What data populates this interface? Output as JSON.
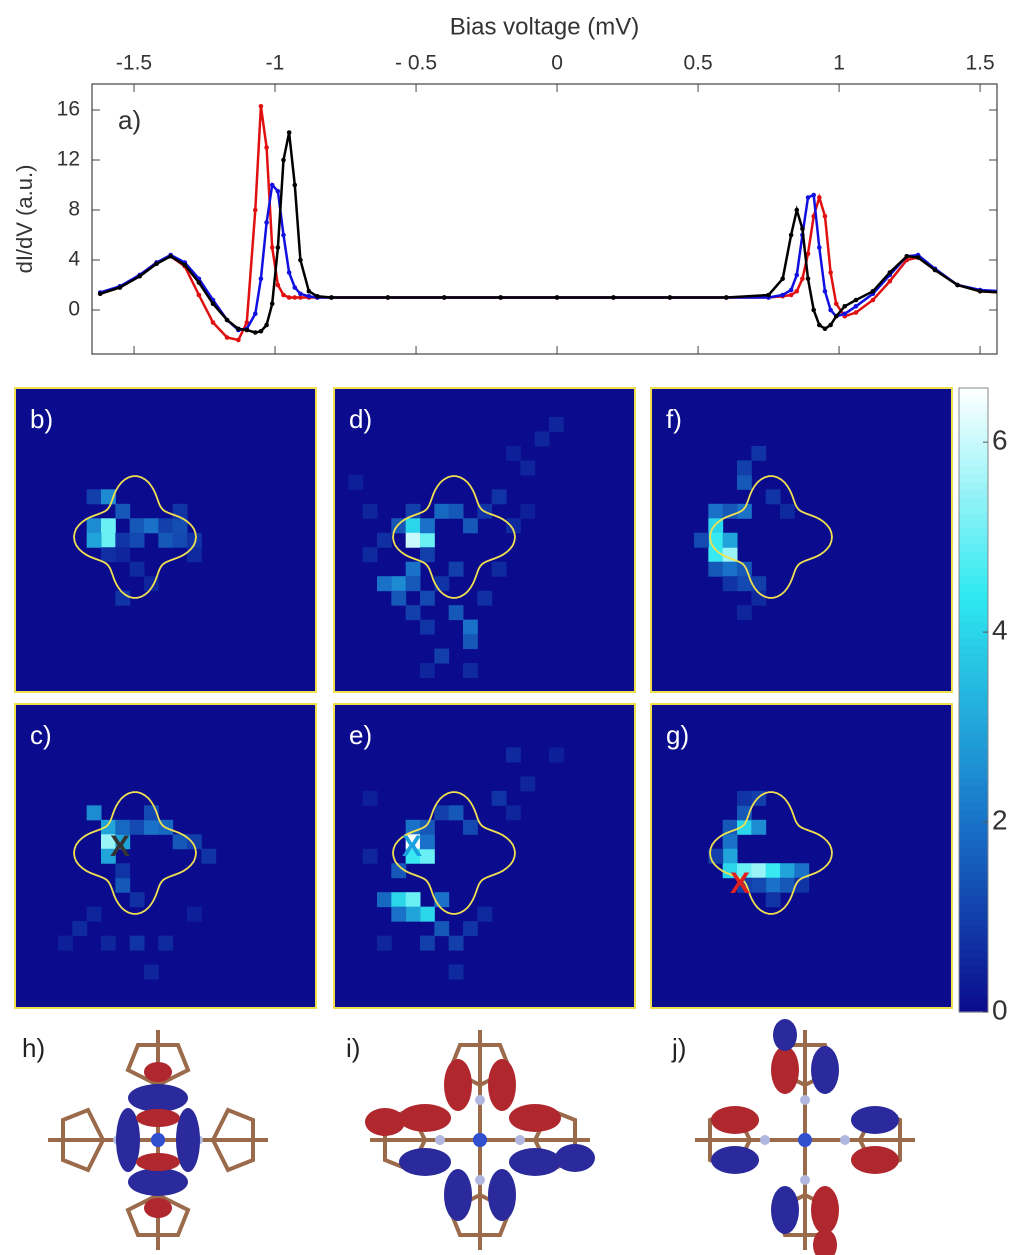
{
  "chart_data": [
    {
      "type": "line",
      "xlabel": "Bias voltage (mV)",
      "ylabel": "dI/dV (a.u.)",
      "panel_label": "a)",
      "xlim": [
        -1.649,
        1.56
      ],
      "ylim": [
        -3.52,
        18.08
      ],
      "xticks": [
        -1.5,
        -1,
        {
          "value": -0.5,
          "label": "- 0.5"
        },
        0,
        0.5,
        1,
        1.5
      ],
      "yticks": [
        0,
        4,
        8,
        12,
        16
      ],
      "x": [
        -1.62,
        -1.55,
        -1.48,
        -1.42,
        -1.37,
        -1.32,
        -1.27,
        -1.22,
        -1.17,
        -1.13,
        -1.1,
        -1.07,
        -1.05,
        -1.03,
        -1.01,
        -0.99,
        -0.97,
        -0.95,
        -0.93,
        -0.91,
        -0.88,
        -0.85,
        -0.8,
        -0.6,
        -0.4,
        -0.2,
        0,
        0.2,
        0.4,
        0.6,
        0.75,
        0.8,
        0.83,
        0.85,
        0.87,
        0.89,
        0.91,
        0.93,
        0.95,
        0.97,
        0.99,
        1.02,
        1.06,
        1.12,
        1.18,
        1.24,
        1.28,
        1.34,
        1.42,
        1.5,
        1.58
      ],
      "series": [
        {
          "color": "#e01010",
          "values": [
            1.3,
            1.8,
            2.8,
            3.8,
            4.3,
            3.5,
            1.2,
            -1.0,
            -2.2,
            -2.4,
            -1.0,
            8,
            16.3,
            13,
            5,
            2.0,
            1.2,
            1.0,
            1,
            1,
            1,
            1,
            1,
            1,
            1,
            1,
            1,
            1,
            1,
            1,
            1,
            1.1,
            1.2,
            1.5,
            2.5,
            4.5,
            7.5,
            9.0,
            7.5,
            3,
            0.5,
            -0.5,
            -0.2,
            0.8,
            2.3,
            4.0,
            4.2,
            3.2,
            2.0,
            1.5,
            1.4
          ]
        },
        {
          "color": "#1010e0",
          "values": [
            1.4,
            1.9,
            2.8,
            3.8,
            4.4,
            3.8,
            2.5,
            0.8,
            -0.8,
            -1.6,
            -1.5,
            -0.3,
            2.5,
            7,
            10,
            9.5,
            6,
            3,
            1.8,
            1.3,
            1.1,
            1.0,
            1,
            1,
            1,
            1,
            1,
            1,
            1,
            1,
            1,
            1.2,
            1.6,
            2.8,
            6,
            9,
            9.2,
            5,
            1.5,
            0,
            -0.5,
            -0.3,
            0.3,
            1.3,
            2.8,
            4.3,
            4.4,
            3.3,
            2.0,
            1.6,
            1.5
          ]
        },
        {
          "color": "#000000",
          "values": [
            1.3,
            1.8,
            2.7,
            3.7,
            4.3,
            3.6,
            2.2,
            0.5,
            -0.8,
            -1.5,
            -1.6,
            -1.8,
            -1.7,
            -1.2,
            0.5,
            5,
            12,
            14.2,
            10,
            4,
            1.5,
            1.1,
            1,
            1,
            1,
            1,
            1,
            1,
            1,
            1,
            1.2,
            2.5,
            6,
            8,
            6.5,
            2.5,
            0,
            -1.2,
            -1.5,
            -1.2,
            -0.5,
            0.3,
            0.8,
            1.5,
            3,
            4.3,
            4.2,
            3.2,
            2.0,
            1.5,
            1.4
          ]
        }
      ]
    },
    {
      "type": "heatmap",
      "clim": [
        0,
        6.57
      ],
      "cticks": [
        0,
        2,
        4,
        6
      ],
      "colormap": [
        "#0b0b8e",
        "#1a7ccc",
        "#2ee8f0",
        "#ffffff"
      ],
      "border_color": "#f0e050",
      "panels": [
        {
          "label": "b)",
          "cells": [
            [
              5,
              9,
              2.5
            ],
            [
              6,
              9,
              5
            ],
            [
              6,
              10,
              5
            ],
            [
              5,
              10,
              3
            ],
            [
              7,
              8,
              1.5
            ],
            [
              5,
              7,
              1
            ],
            [
              6,
              7,
              2.5
            ],
            [
              8,
              9,
              1.5
            ],
            [
              9,
              9,
              2
            ],
            [
              10,
              9,
              1
            ],
            [
              10,
              10,
              1.5
            ],
            [
              11,
              10,
              1.2
            ],
            [
              12,
              10,
              0.8
            ],
            [
              11,
              9,
              1.3
            ],
            [
              7,
              10,
              0.8
            ],
            [
              8,
              10,
              1.2
            ],
            [
              11,
              8,
              0.8
            ],
            [
              7,
              11,
              0.5
            ],
            [
              8,
              12,
              0.6
            ],
            [
              7,
              14,
              0.8
            ],
            [
              9,
              13,
              0.5
            ],
            [
              12,
              11,
              0.6
            ],
            [
              6,
              11,
              0.7
            ]
          ]
        },
        {
          "label": "c)",
          "marker": {
            "label": "X",
            "color": "#333333"
          },
          "cells": [
            [
              5,
              7,
              2.5
            ],
            [
              6,
              8,
              3
            ],
            [
              6,
              9,
              5.5
            ],
            [
              7,
              9,
              3
            ],
            [
              6,
              10,
              3
            ],
            [
              7,
              8,
              1.8
            ],
            [
              8,
              8,
              1.2
            ],
            [
              9,
              8,
              2
            ],
            [
              10,
              8,
              1.8
            ],
            [
              9,
              7,
              1.2
            ],
            [
              11,
              9,
              1.5
            ],
            [
              12,
              9,
              1
            ],
            [
              13,
              10,
              0.8
            ],
            [
              7,
              12,
              1.5
            ],
            [
              7,
              11,
              0.8
            ],
            [
              8,
              13,
              0.7
            ],
            [
              5,
              14,
              0.5
            ],
            [
              4,
              15,
              0.6
            ],
            [
              6,
              16,
              0.5
            ],
            [
              8,
              16,
              0.8
            ],
            [
              9,
              18,
              0.5
            ],
            [
              10,
              16,
              0.6
            ],
            [
              3,
              16,
              0.4
            ],
            [
              12,
              14,
              0.4
            ]
          ]
        },
        {
          "label": "d)",
          "cells": [
            [
              5,
              8,
              1
            ],
            [
              4,
              9,
              1.5
            ],
            [
              5,
              9,
              4
            ],
            [
              5,
              10,
              6
            ],
            [
              6,
              10,
              5
            ],
            [
              6,
              9,
              2
            ],
            [
              7,
              8,
              1.8
            ],
            [
              6,
              11,
              1
            ],
            [
              5,
              12,
              2
            ],
            [
              4,
              13,
              2.5
            ],
            [
              3,
              13,
              2
            ],
            [
              5,
              13,
              1.5
            ],
            [
              6,
              14,
              1.2
            ],
            [
              4,
              14,
              1.5
            ],
            [
              5,
              15,
              1
            ],
            [
              6,
              16,
              0.8
            ],
            [
              8,
              15,
              1.5
            ],
            [
              9,
              16,
              2
            ],
            [
              9,
              17,
              1.5
            ],
            [
              7,
              18,
              1
            ],
            [
              8,
              8,
              1.5
            ],
            [
              9,
              9,
              1.5
            ],
            [
              10,
              8,
              0.8
            ],
            [
              11,
              7,
              0.8
            ],
            [
              13,
              5,
              0.5
            ],
            [
              14,
              3,
              0.5
            ],
            [
              15,
              2,
              0.5
            ],
            [
              12,
              4,
              0.4
            ],
            [
              3,
              10,
              0.7
            ],
            [
              2,
              11,
              0.6
            ],
            [
              1,
              6,
              0.4
            ],
            [
              2,
              8,
              0.5
            ],
            [
              8,
              12,
              1
            ],
            [
              7,
              13,
              0.8
            ],
            [
              10,
              14,
              0.7
            ],
            [
              11,
              12,
              0.6
            ],
            [
              9,
              19,
              0.6
            ],
            [
              6,
              19,
              0.5
            ],
            [
              13,
              8,
              0.4
            ],
            [
              12,
              9,
              0.6
            ]
          ]
        },
        {
          "label": "e)",
          "marker": {
            "label": "X",
            "color": "#1aa0e0"
          },
          "cells": [
            [
              5,
              8,
              2
            ],
            [
              5,
              9,
              6.5
            ],
            [
              5,
              10,
              4.5
            ],
            [
              6,
              10,
              5
            ],
            [
              6,
              9,
              2
            ],
            [
              6,
              8,
              1.5
            ],
            [
              7,
              7,
              1
            ],
            [
              8,
              7,
              1.5
            ],
            [
              9,
              8,
              1.2
            ],
            [
              4,
              11,
              1.5
            ],
            [
              3,
              13,
              1.8
            ],
            [
              4,
              13,
              4
            ],
            [
              5,
              13,
              5
            ],
            [
              6,
              14,
              4
            ],
            [
              7,
              13,
              2
            ],
            [
              5,
              14,
              3
            ],
            [
              4,
              14,
              2
            ],
            [
              7,
              15,
              1.5
            ],
            [
              6,
              16,
              1
            ],
            [
              8,
              16,
              1
            ],
            [
              9,
              15,
              0.8
            ],
            [
              10,
              14,
              0.6
            ],
            [
              12,
              3,
              0.6
            ],
            [
              13,
              5,
              0.5
            ],
            [
              15,
              3,
              0.4
            ],
            [
              11,
              6,
              0.8
            ],
            [
              12,
              7,
              0.5
            ],
            [
              2,
              6,
              0.4
            ],
            [
              2,
              10,
              0.5
            ],
            [
              8,
              18,
              0.6
            ],
            [
              3,
              16,
              0.5
            ]
          ]
        },
        {
          "label": "f)",
          "cells": [
            [
              4,
              8,
              2
            ],
            [
              4,
              9,
              4
            ],
            [
              4,
              10,
              4.5
            ],
            [
              4,
              11,
              4.5
            ],
            [
              5,
              11,
              5.5
            ],
            [
              5,
              10,
              3
            ],
            [
              6,
              8,
              2
            ],
            [
              5,
              8,
              1.5
            ],
            [
              6,
              6,
              1.5
            ],
            [
              6,
              5,
              1
            ],
            [
              7,
              4,
              0.8
            ],
            [
              3,
              10,
              1.2
            ],
            [
              4,
              12,
              1.5
            ],
            [
              5,
              12,
              2
            ],
            [
              6,
              12,
              1.5
            ],
            [
              6,
              13,
              1.2
            ],
            [
              7,
              13,
              1
            ],
            [
              5,
              13,
              0.8
            ],
            [
              7,
              14,
              0.6
            ],
            [
              6,
              15,
              0.5
            ],
            [
              8,
              7,
              0.8
            ],
            [
              9,
              8,
              0.6
            ]
          ]
        },
        {
          "label": "g)",
          "marker": {
            "label": "X",
            "color": "#e02020"
          },
          "cells": [
            [
              5,
              8,
              1.5
            ],
            [
              6,
              8,
              4
            ],
            [
              7,
              8,
              2.5
            ],
            [
              5,
              9,
              2
            ],
            [
              5,
              10,
              3
            ],
            [
              5,
              11,
              4
            ],
            [
              6,
              11,
              5
            ],
            [
              7,
              11,
              5.5
            ],
            [
              8,
              11,
              4.5
            ],
            [
              9,
              11,
              3
            ],
            [
              10,
              11,
              2
            ],
            [
              8,
              12,
              2
            ],
            [
              9,
              12,
              1.5
            ],
            [
              7,
              12,
              1.2
            ],
            [
              6,
              7,
              1.5
            ],
            [
              7,
              6,
              1
            ],
            [
              6,
              6,
              0.8
            ],
            [
              8,
              13,
              0.8
            ],
            [
              10,
              12,
              0.8
            ],
            [
              4,
              10,
              1
            ],
            [
              6,
              12,
              1
            ]
          ]
        }
      ]
    }
  ],
  "molecules": {
    "labels": [
      "h)",
      "i)",
      "j)"
    ]
  }
}
